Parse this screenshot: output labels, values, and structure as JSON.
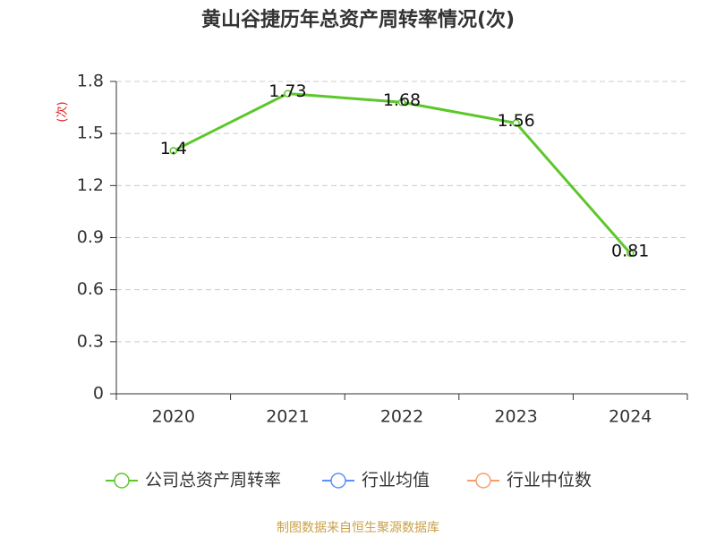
{
  "chart_data": {
    "type": "line",
    "title": "黄山谷捷历年总资产周转率情况(次)",
    "ylabel": "(次)",
    "source": "制图数据来自恒生聚源数据库",
    "categories": [
      "2020",
      "2021",
      "2022",
      "2023",
      "2024"
    ],
    "series": [
      {
        "name": "公司总资产周转率",
        "color": "#5cc72a",
        "values": [
          1.4,
          1.73,
          1.68,
          1.56,
          0.81
        ]
      },
      {
        "name": "行业均值",
        "color": "#5b8ff9",
        "values": [
          null,
          null,
          null,
          null,
          null
        ]
      },
      {
        "name": "行业中位数",
        "color": "#f79d6b",
        "values": [
          null,
          null,
          null,
          null,
          null
        ]
      }
    ],
    "ylim": [
      0,
      1.8
    ],
    "yticks": [
      0,
      0.3,
      0.6,
      0.9,
      1.2,
      1.5,
      1.8
    ],
    "grid": true
  }
}
